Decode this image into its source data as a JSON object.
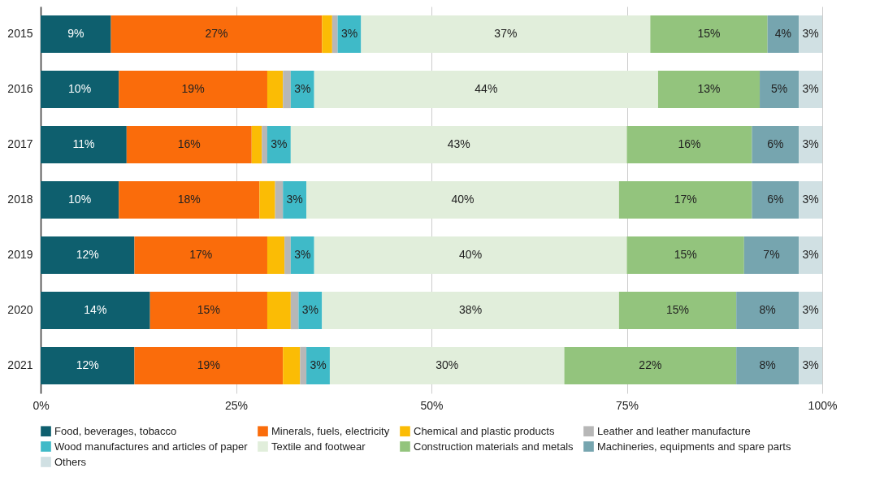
{
  "chart_data": {
    "type": "bar",
    "orientation": "horizontal",
    "stacked": true,
    "categories": [
      "2015",
      "2016",
      "2017",
      "2018",
      "2019",
      "2020",
      "2021"
    ],
    "xlim": [
      0,
      100
    ],
    "xticks": [
      {
        "value": 0,
        "label": "0%"
      },
      {
        "value": 25,
        "label": "25%"
      },
      {
        "value": 50,
        "label": "50%"
      },
      {
        "value": 75,
        "label": "75%"
      },
      {
        "value": 100,
        "label": "100%"
      }
    ],
    "grid": "x",
    "legend": "bottom",
    "series": [
      {
        "name": "Food, beverages, tobacco",
        "color": "#0e5f6e",
        "values": [
          9,
          10,
          11,
          10,
          12,
          14,
          12
        ],
        "value_labels": [
          "9%",
          "10%",
          "11%",
          "10%",
          "12%",
          "14%",
          "12%"
        ]
      },
      {
        "name": "Minerals, fuels, electricity",
        "color": "#fa6c0b",
        "values": [
          27,
          19,
          16,
          18,
          17,
          15,
          19
        ],
        "value_labels": [
          "27%",
          "19%",
          "16%",
          "18%",
          "17%",
          "15%",
          "19%"
        ]
      },
      {
        "name": "Chemical and plastic products",
        "color": "#fbbc05",
        "values": [
          1.3,
          2,
          1.3,
          2,
          2.2,
          3,
          2.2
        ]
      },
      {
        "name": "Leather and leather manufacture",
        "color": "#b7b7b7",
        "values": [
          0.7,
          1,
          0.7,
          1,
          0.8,
          1,
          0.8
        ]
      },
      {
        "name": "Wood manufactures and articles of paper",
        "color": "#3fbac8",
        "values": [
          3,
          3,
          3,
          3,
          3,
          3,
          3
        ],
        "value_labels": [
          "3%",
          "3%",
          "3%",
          "3%",
          "3%",
          "3%",
          "3%"
        ]
      },
      {
        "name": "Textile and footwear",
        "color": "#e1eedb",
        "values": [
          37,
          44,
          43,
          40,
          40,
          38,
          30
        ],
        "value_labels": [
          "37%",
          "44%",
          "43%",
          "40%",
          "40%",
          "38%",
          "30%"
        ]
      },
      {
        "name": "Construction materials and metals",
        "color": "#93c47d",
        "values": [
          15,
          13,
          16,
          17,
          15,
          15,
          22
        ],
        "value_labels": [
          "15%",
          "13%",
          "16%",
          "17%",
          "15%",
          "15%",
          "22%"
        ]
      },
      {
        "name": "Machineries, equipments and spare parts",
        "color": "#76a5af",
        "values": [
          4,
          5,
          6,
          6,
          7,
          8,
          8
        ],
        "value_labels": [
          "4%",
          "5%",
          "6%",
          "6%",
          "7%",
          "8%",
          "8%"
        ]
      },
      {
        "name": "Others",
        "color": "#d0e0e3",
        "values": [
          3,
          3,
          3,
          3,
          3,
          3,
          3
        ],
        "value_labels": [
          "3%",
          "3%",
          "3%",
          "3%",
          "3%",
          "3%",
          "3%"
        ]
      }
    ]
  }
}
